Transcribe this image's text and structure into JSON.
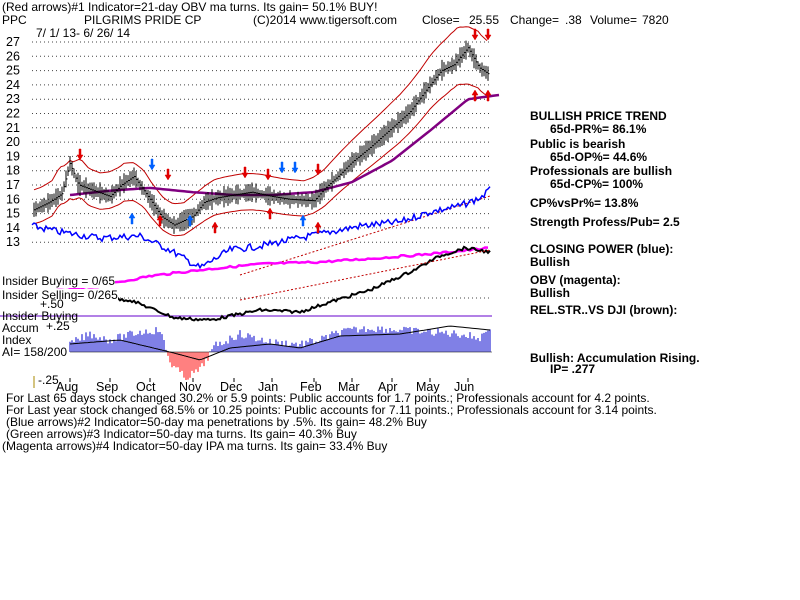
{
  "header": {
    "line1": "(Red arrows)#1 Indicator=21-day OBV ma turns. Its gain= 50.1% BUY!",
    "ticker": "PPC",
    "company": "PILGRIMS PRIDE CP",
    "site": "(C)2014 www.tigersoft.com",
    "close_label": "Close=",
    "close": "25.55",
    "change_label": "Change=",
    "change": ".38",
    "volume_label": "Volume=",
    "volume": "7820",
    "daterange": "7/ 1/ 13- 6/ 26/ 14"
  },
  "chart_data": {
    "type": "line",
    "title": "PILGRIMS PRIDE CP",
    "ylim": [
      13,
      27
    ],
    "yticks": [
      "27",
      "26",
      "25",
      "24",
      "23",
      "22",
      "21",
      "20",
      "19",
      "18",
      "17",
      "16",
      "15",
      "14",
      "13"
    ],
    "months": [
      "Aug",
      "Sep",
      "Oct",
      "Nov",
      "Dec",
      "Jan",
      "Feb",
      "Mar",
      "Apr",
      "May",
      "Jun"
    ],
    "grid": "horizontal dotted",
    "colors": {
      "price": "#000000",
      "bands": "#c00000",
      "ma50": "#800080",
      "closing_power": "#0000ff",
      "obv": "#ff00ff",
      "accum_up": "#0000cc",
      "accum_down": "#ff0000"
    },
    "price": [
      [
        "Jul 1",
        15.2
      ],
      [
        "Jul 15",
        15.8
      ],
      [
        "Jul 25",
        16.4
      ],
      [
        "Aug 1",
        18.5
      ],
      [
        "Aug 8",
        17.0
      ],
      [
        "Aug 20",
        16.6
      ],
      [
        "Sep 1",
        16.2
      ],
      [
        "Sep 10",
        17.0
      ],
      [
        "Sep 20",
        17.6
      ],
      [
        "Oct 1",
        16.0
      ],
      [
        "Oct 10",
        14.8
      ],
      [
        "Oct 20",
        14.2
      ],
      [
        "Nov 1",
        14.8
      ],
      [
        "Nov 10",
        15.8
      ],
      [
        "Nov 20",
        16.1
      ],
      [
        "Dec 1",
        16.3
      ],
      [
        "Dec 15",
        16.5
      ],
      [
        "Jan 1",
        16.2
      ],
      [
        "Jan 15",
        16.0
      ],
      [
        "Feb 1",
        15.9
      ],
      [
        "Feb 10",
        16.8
      ],
      [
        "Feb 20",
        17.6
      ],
      [
        "Mar 1",
        18.6
      ],
      [
        "Mar 15",
        19.6
      ],
      [
        "Apr 1",
        21.0
      ],
      [
        "Apr 15",
        22.1
      ],
      [
        "May 1",
        24.0
      ],
      [
        "May 10",
        25.0
      ],
      [
        "May 20",
        25.4
      ],
      [
        "Jun 1",
        26.6
      ],
      [
        "Jun 10",
        25.2
      ],
      [
        "Jun 20",
        24.6
      ],
      [
        "Jun 26",
        25.55
      ]
    ],
    "ma50": [
      [
        "Aug 1",
        16.3
      ],
      [
        "Sep 1",
        16.6
      ],
      [
        "Oct 1",
        16.8
      ],
      [
        "Nov 1",
        16.5
      ],
      [
        "Dec 1",
        16.3
      ],
      [
        "Jan 1",
        16.3
      ],
      [
        "Feb 1",
        16.5
      ],
      [
        "Mar 1",
        17.2
      ],
      [
        "Apr 1",
        18.7
      ],
      [
        "May 1",
        20.8
      ],
      [
        "Jun 1",
        23.0
      ],
      [
        "Jun 26",
        23.3
      ]
    ]
  },
  "indicators": {
    "insider_buying_label": "Insider Buying = 0/65",
    "insider_selling_label": "Insider Selling= 0/265",
    "plus50": "+.50",
    "insider_buying2": "Insider Buying",
    "accum_label": "Accum",
    "plus25": "+.25",
    "index_label": "Index",
    "ai_label": "AI= 158/200",
    "minus25": "-.25"
  },
  "right_panel": {
    "trend_title": "BULLISH PRICE TREND",
    "pr": "65d-PR%= 86.1%",
    "public_title": "Public is bearish",
    "op": "65d-OP%= 44.6%",
    "pros_title": "Professionals are bullish",
    "cp": "65d-CP%= 100%",
    "cpvspr": "CP%vsPr%=  13.8%",
    "strength": "Strength Profess/Pub= 2.5",
    "closing_power": "CLOSING POWER (blue):",
    "closing_power_val": "Bullish",
    "obv": "OBV (magenta):",
    "obv_val": "Bullish",
    "relstr": "REL.STR..VS DJI (brown):",
    "accum_status": "Bullish: Accumulation Rising.",
    "ip": "IP=  .277"
  },
  "footer": {
    "line1": "For Last 65 days stock changed  30.2% or  5.9 points:  Public accounts for  1.7 points.;  Professionals account for  4.2 points.",
    "line2": "For Last year stock changed  68.5% or  10.25 points:  Public accounts for  7.11 points.;  Professionals account for  3.14 points.",
    "line3": "(Blue arrows)#2 Indicator=50-day ma penetrations by .5%. Its gain= 48.2% Buy",
    "line4": "(Green arrows)#3 Indicator=50-day ma turns. Its gain= 40.3% Buy",
    "line5": "(Magenta arrows)#4 Indicator=50-day IPA ma turns. Its gain= 33.4% Buy"
  }
}
